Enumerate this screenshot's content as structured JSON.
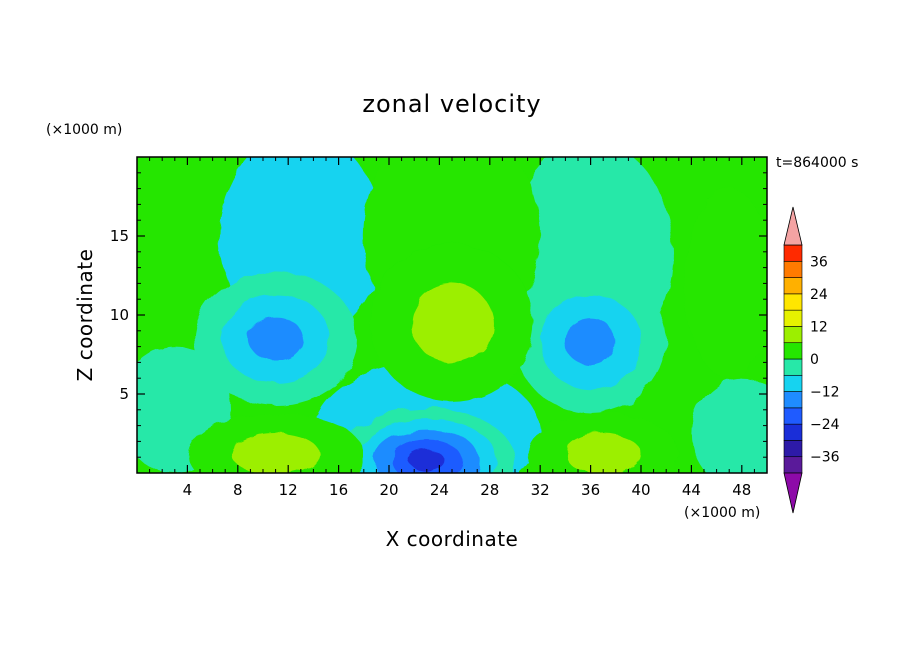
{
  "chart_data": {
    "type": "heatmap",
    "title": "zonal velocity",
    "xlabel": "X coordinate",
    "ylabel": "Z coordinate",
    "x_unit": "(×1000 m)",
    "y_unit": "(×1000 m)",
    "time_label": "t=864000 s",
    "xlim": [
      0,
      50
    ],
    "ylim": [
      0,
      20
    ],
    "x_ticks": [
      4,
      8,
      12,
      16,
      20,
      24,
      28,
      32,
      36,
      40,
      44,
      48
    ],
    "y_ticks": [
      5,
      10,
      15
    ],
    "colorbar": {
      "levels": [
        -42,
        -36,
        -30,
        -24,
        -18,
        -12,
        -6,
        0,
        6,
        12,
        18,
        24,
        30,
        36,
        42
      ],
      "tick_labels": [
        36,
        24,
        12,
        0,
        -12,
        -24,
        -36
      ],
      "colors": [
        "#5a1a9a",
        "#2d1aa8",
        "#1a2ed8",
        "#1f5bff",
        "#1f8cff",
        "#16d3f0",
        "#27e8a8",
        "#25e600",
        "#9cef00",
        "#e6f200",
        "#ffe600",
        "#ffb000",
        "#ff7a00",
        "#ff2a00"
      ],
      "under_color": "#8d0aa8",
      "over_color": "#f4a3a3"
    },
    "features": [
      {
        "x": 11,
        "z": 8.5,
        "min_value": -20,
        "sign": "negative"
      },
      {
        "x": 36,
        "z": 8.3,
        "min_value": -22,
        "sign": "negative"
      },
      {
        "x": 23,
        "z": 0.8,
        "min_value": -30,
        "sign": "negative"
      },
      {
        "x": 25,
        "z": 9.5,
        "max_value": 15,
        "sign": "positive"
      },
      {
        "x": 11,
        "z": 1.2,
        "max_value": 15,
        "sign": "positive"
      },
      {
        "x": 37,
        "z": 1.2,
        "max_value": 15,
        "sign": "positive"
      },
      {
        "x": 47,
        "z": 12,
        "max_value": 8,
        "sign": "positive"
      }
    ]
  }
}
